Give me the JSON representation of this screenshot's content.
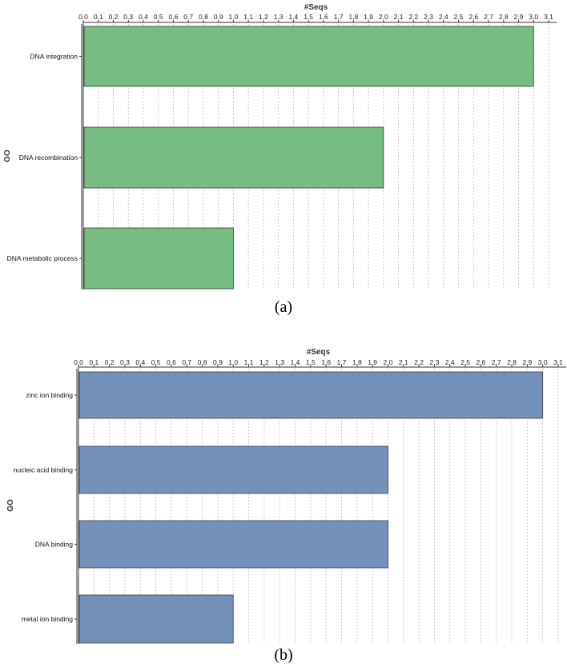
{
  "chart_data": [
    {
      "type": "bar",
      "orientation": "horizontal",
      "xlabel": "#Seqs",
      "ylabel": "GO",
      "xlim": [
        0,
        3.1
      ],
      "xticks": [
        "0.0",
        "0.1",
        "0.2",
        "0.3",
        "0.4",
        "0.5",
        "0.6",
        "0.7",
        "0.8",
        "0.9",
        "1.0",
        "1.1",
        "1.2",
        "1.3",
        "1.4",
        "1.5",
        "1.6",
        "1.7",
        "1.8",
        "1.9",
        "2.0",
        "2.1",
        "2.2",
        "2.3",
        "2.4",
        "2.5",
        "2.6",
        "2.7",
        "2.8",
        "2.9",
        "3.0",
        "3.1"
      ],
      "categories": [
        "DNA integration",
        "DNA recombination",
        "DNA metabolic process"
      ],
      "values": [
        3,
        2,
        1
      ],
      "bar_color": "#76bc83",
      "grid": true,
      "panel_label": "(a)"
    },
    {
      "type": "bar",
      "orientation": "horizontal",
      "xlabel": "#Seqs",
      "ylabel": "GO",
      "xlim": [
        0,
        3.1
      ],
      "xticks": [
        "0.0",
        "0.1",
        "0.2",
        "0.3",
        "0.4",
        "0.5",
        "0.6",
        "0.7",
        "0.8",
        "0.9",
        "1.0",
        "1.1",
        "1.2",
        "1.3",
        "1.4",
        "1.5",
        "1.6",
        "1.7",
        "1.8",
        "1.9",
        "2.0",
        "2.1",
        "2.2",
        "2.3",
        "2.4",
        "2.5",
        "2.6",
        "2.7",
        "2.8",
        "2.9",
        "3.0",
        "3.1"
      ],
      "categories": [
        "zinc ion binding",
        "nucleic acid binding",
        "DNA binding",
        "metal ion binding"
      ],
      "values": [
        3,
        2,
        2,
        1
      ],
      "bar_color": "#7491bb",
      "grid": true,
      "panel_label": "(b)"
    }
  ]
}
